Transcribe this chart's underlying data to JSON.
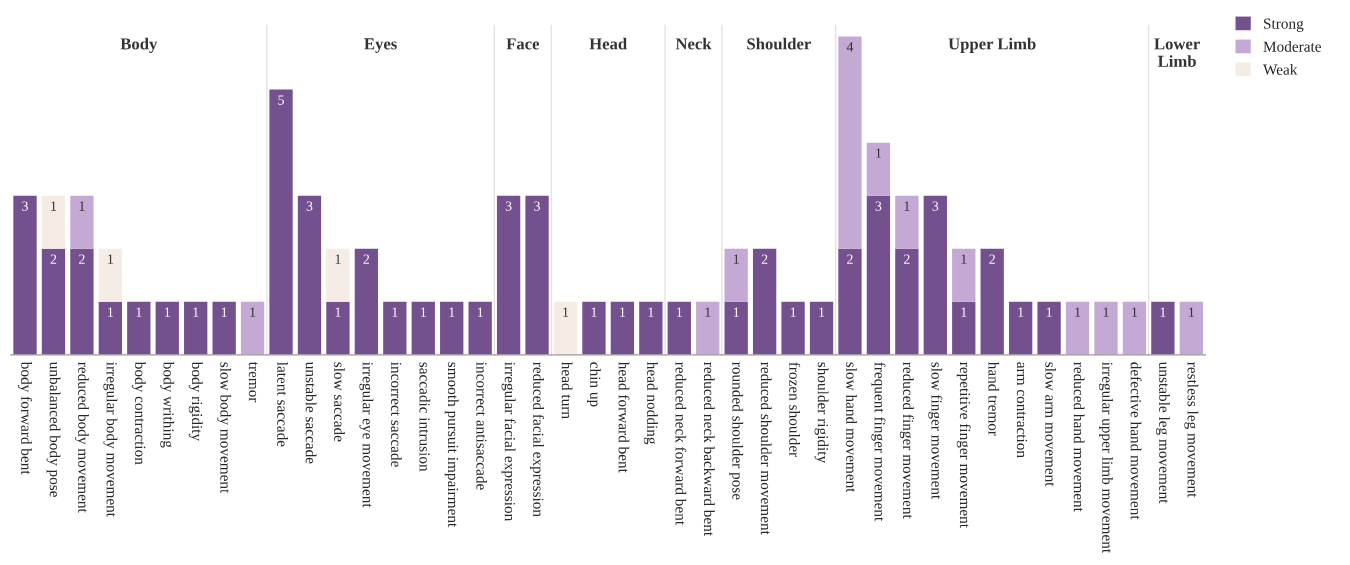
{
  "chart_data": [
    {
      "type": "bar",
      "stacked": true,
      "data_labels": true,
      "title": "Body",
      "legend": "top right",
      "categories": [
        "body forward bent",
        "unbalanced body pose",
        "reduced body movement",
        "irregular body movement",
        "body contraction",
        "body writhing",
        "body rigidity",
        "slow body movement",
        "tremor"
      ],
      "series": [
        {
          "name": "Strong",
          "color": "#74508f",
          "values": [
            3,
            2,
            2,
            1,
            1,
            1,
            1,
            1,
            null
          ]
        },
        {
          "name": "Moderate",
          "color": "#c3a9d3",
          "values": [
            null,
            null,
            1,
            null,
            null,
            null,
            null,
            null,
            1
          ]
        },
        {
          "name": "Weak",
          "color": "#f5ede5",
          "values": [
            null,
            1,
            null,
            1,
            null,
            null,
            null,
            null,
            null
          ]
        }
      ]
    },
    {
      "type": "bar",
      "stacked": true,
      "data_labels": true,
      "title": "Eyes",
      "categories": [
        "latent saccade",
        "unstable saccade",
        "slow saccade",
        "irregular eye movement",
        "incorrect saccade",
        "saccadic intrusion",
        "smooth pursuit impairment",
        "incorrect antisaccade"
      ],
      "series": [
        {
          "name": "Strong",
          "color": "#74508f",
          "values": [
            5,
            3,
            1,
            2,
            1,
            1,
            1,
            1
          ]
        },
        {
          "name": "Weak",
          "color": "#f5ede5",
          "values": [
            null,
            null,
            1,
            null,
            null,
            null,
            null,
            null
          ]
        }
      ]
    },
    {
      "type": "bar",
      "stacked": true,
      "data_labels": true,
      "title": "Face",
      "categories": [
        "irregular facial expression",
        "reduced facial expression"
      ],
      "series": [
        {
          "name": "Strong",
          "color": "#74508f",
          "values": [
            3,
            3
          ]
        }
      ]
    },
    {
      "type": "bar",
      "stacked": true,
      "data_labels": true,
      "title": "Head",
      "categories": [
        "head turn",
        "chin up",
        "head forward bent",
        "head nodding"
      ],
      "series": [
        {
          "name": "Strong",
          "color": "#74508f",
          "values": [
            null,
            1,
            1,
            1
          ]
        },
        {
          "name": "Weak",
          "color": "#f5ede5",
          "values": [
            1,
            null,
            null,
            null
          ]
        }
      ]
    },
    {
      "type": "bar",
      "stacked": true,
      "data_labels": true,
      "title": "Neck",
      "categories": [
        "reduced neck forward bent",
        "reduced neck backward bent"
      ],
      "series": [
        {
          "name": "Strong",
          "color": "#74508f",
          "values": [
            1,
            null
          ]
        },
        {
          "name": "Moderate",
          "color": "#c3a9d3",
          "values": [
            null,
            1
          ]
        }
      ]
    },
    {
      "type": "bar",
      "stacked": true,
      "data_labels": true,
      "title": "Shoulder",
      "categories": [
        "rounded shoulder pose",
        "reduced shoulder movement",
        "frozen shoulder",
        "shoulder rigidity"
      ],
      "series": [
        {
          "name": "Strong",
          "color": "#74508f",
          "values": [
            1,
            2,
            1,
            1
          ]
        },
        {
          "name": "Moderate",
          "color": "#c3a9d3",
          "values": [
            1,
            null,
            null,
            null
          ]
        }
      ]
    },
    {
      "type": "bar",
      "stacked": true,
      "data_labels": true,
      "title": "Upper Limb",
      "categories": [
        "slow hand movement",
        "frequent finger movement",
        "reduced finger movement",
        "slow finger movement",
        "repetitive finger movement",
        "hand tremor",
        "arm contraction",
        "slow arm movement",
        "reduced hand movement",
        "irregular upper limb movement",
        "defective hand movement"
      ],
      "series": [
        {
          "name": "Strong",
          "color": "#74508f",
          "values": [
            2,
            3,
            2,
            3,
            1,
            2,
            1,
            1,
            null,
            null,
            null
          ]
        },
        {
          "name": "Moderate",
          "color": "#c3a9d3",
          "values": [
            4,
            1,
            1,
            null,
            1,
            null,
            null,
            null,
            1,
            1,
            1
          ]
        }
      ]
    },
    {
      "type": "bar",
      "stacked": true,
      "data_labels": true,
      "title": "Lower Limb",
      "categories": [
        "unstable leg movement",
        "restless leg movement"
      ],
      "series": [
        {
          "name": "Strong",
          "color": "#74508f",
          "values": [
            1,
            null
          ]
        },
        {
          "name": "Moderate",
          "color": "#c3a9d3",
          "values": [
            null,
            1
          ]
        },
        {
          "name": "Weak",
          "color": "#f5ede5",
          "values": [
            null,
            null
          ]
        }
      ]
    }
  ]
}
